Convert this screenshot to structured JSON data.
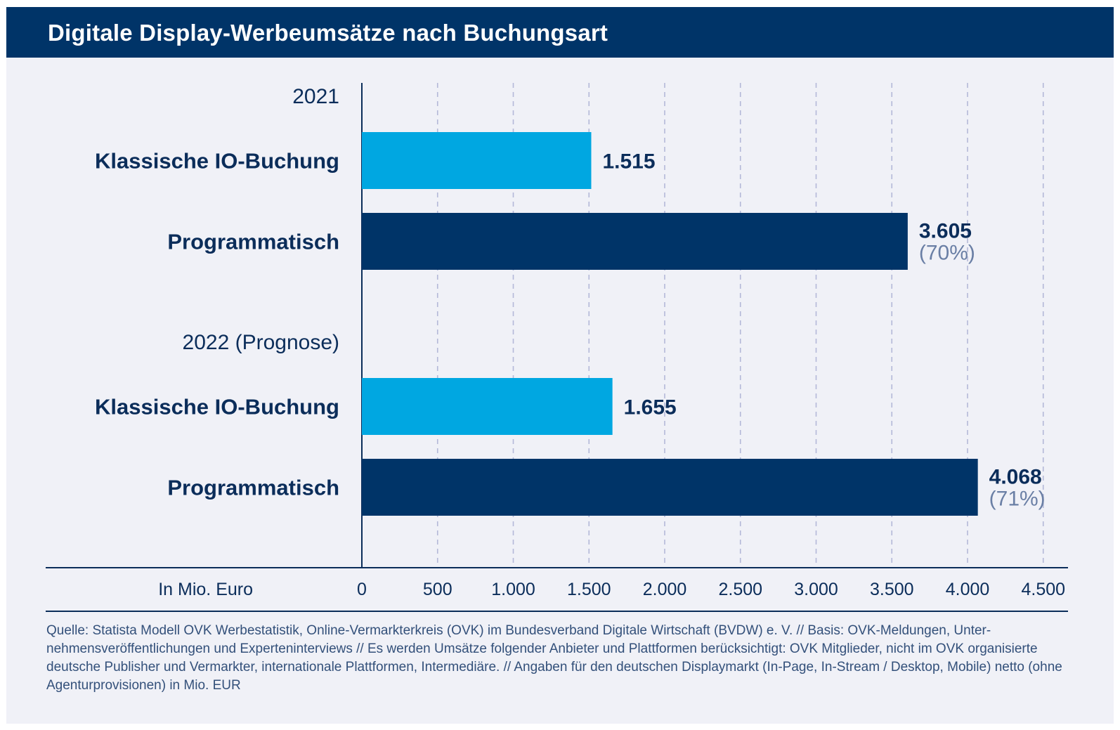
{
  "header": {
    "title": "Digitale Display-Werbeumsätze nach Buchungsart"
  },
  "chart_data": {
    "type": "bar",
    "orientation": "horizontal",
    "title": "Digitale Display-Werbeumsätze nach Buchungsart",
    "xlabel": "In Mio. Euro",
    "xlim": [
      0,
      4500
    ],
    "xticks": [
      0,
      500,
      1000,
      1500,
      2000,
      2500,
      3000,
      3500,
      4000,
      4500
    ],
    "xtick_labels": [
      "0",
      "500",
      "1.000",
      "1.500",
      "2.000",
      "2.500",
      "3.000",
      "3.500",
      "4.000",
      "4.500"
    ],
    "grid": "vertical-dashed",
    "groups": [
      {
        "label": "2021",
        "bars": [
          {
            "category": "Klassische IO-Buchung",
            "value": 1515,
            "value_label": "1.515",
            "share_label": "",
            "color": "#00a7e1"
          },
          {
            "category": "Programmatisch",
            "value": 3605,
            "value_label": "3.605",
            "share_label": "(70%)",
            "color": "#003468"
          }
        ]
      },
      {
        "label": "2022 (Prognose)",
        "bars": [
          {
            "category": "Klassische IO-Buchung",
            "value": 1655,
            "value_label": "1.655",
            "share_label": "",
            "color": "#00a7e1"
          },
          {
            "category": "Programmatisch",
            "value": 4068,
            "value_label": "4.068",
            "share_label": "(71%)",
            "color": "#003468"
          }
        ]
      }
    ]
  },
  "source": "Quelle: Statista Modell OVK Werbestatistik, Online-Vermarkterkreis (OVK) im Bundesverband Digitale Wirtschaft (BVDW) e. V. // Basis: OVK-Meldungen, Unter-nehmensveröffentlichungen und Experteninterviews // Es werden Umsätze folgender Anbieter und Plattformen berücksichtigt: OVK Mitglieder, nicht im OVK organisierte deutsche Publisher und Vermarkter, internationale Plattformen, Intermediäre. // Angaben für den deutschen Displaymarkt (In-Page, In-Stream / Desktop, Mobile) netto (ohne Agenturprovisionen) in Mio. EUR",
  "colors": {
    "header": "#003468",
    "background": "#f0f1f7",
    "bar_light": "#00a7e1",
    "bar_dark": "#003468",
    "text_dark": "#0b2d5a",
    "text_muted": "#6a7fa5",
    "grid": "#b4b8d8"
  }
}
